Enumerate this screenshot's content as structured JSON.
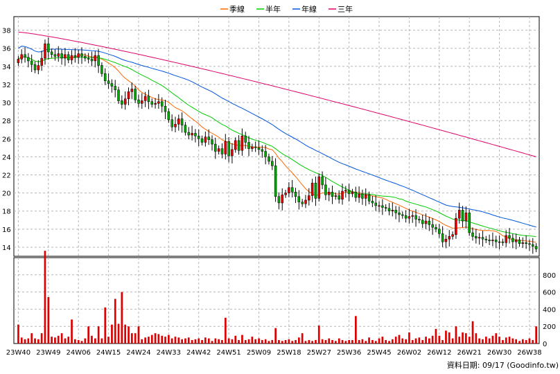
{
  "chart_data": {
    "type": "candlestick",
    "legend": [
      {
        "name": "季線",
        "color": "#ff6600"
      },
      {
        "name": "半年",
        "color": "#00cc00"
      },
      {
        "name": "年線",
        "color": "#0055dd"
      },
      {
        "name": "三年",
        "color": "#dd0066"
      }
    ],
    "legend_position": "top-center",
    "grid": true,
    "colors": {
      "up": "#ee0000",
      "down": "#00aa00",
      "volume": "#dd0000"
    },
    "price_axis": {
      "ylim": [
        13,
        39.5
      ],
      "ticks": [
        14,
        16,
        18,
        20,
        22,
        24,
        26,
        28,
        30,
        32,
        34,
        36,
        38
      ]
    },
    "volume_axis": {
      "ylim": [
        0,
        1000
      ],
      "ticks": [
        0,
        200,
        400,
        600,
        800
      ]
    },
    "x_tick_labels": [
      "23W40",
      "23W49",
      "24W06",
      "24W15",
      "24W24",
      "24W33",
      "24W42",
      "24W51",
      "25W09",
      "25W18",
      "25W27",
      "25W36",
      "25W45",
      "26W02",
      "26W12",
      "26W21",
      "26W30",
      "26W38"
    ],
    "x_tick_indices": [
      0,
      9,
      18,
      27,
      36,
      45,
      54,
      63,
      72,
      81,
      90,
      99,
      108,
      117,
      126,
      135,
      144,
      153
    ],
    "close": [
      34.8,
      35.3,
      35.0,
      34.6,
      34.2,
      33.6,
      34.1,
      34.9,
      36.5,
      35.6,
      35.3,
      35.1,
      35.4,
      34.9,
      35.3,
      34.7,
      35.2,
      35.0,
      35.4,
      35.1,
      34.9,
      34.8,
      34.6,
      35.2,
      34.1,
      33.2,
      32.4,
      32.1,
      31.8,
      31.4,
      30.2,
      29.8,
      30.4,
      31.2,
      31.5,
      30.3,
      29.9,
      30.2,
      30.7,
      30.1,
      29.8,
      29.9,
      30.1,
      29.6,
      29.0,
      28.1,
      27.3,
      27.6,
      28.2,
      27.5,
      26.7,
      26.4,
      26.6,
      26.3,
      26.0,
      25.6,
      26.2,
      25.9,
      25.4,
      24.6,
      24.9,
      24.3,
      25.7,
      24.1,
      24.8,
      25.8,
      24.7,
      26.3,
      25.6,
      24.9,
      25.1,
      25.0,
      24.8,
      24.6,
      24.0,
      23.5,
      23.0,
      19.6,
      18.9,
      19.8,
      20.0,
      20.6,
      20.1,
      19.6,
      19.0,
      18.8,
      19.2,
      19.7,
      21.1,
      19.4,
      21.8,
      20.9,
      19.8,
      20.1,
      19.6,
      19.7,
      19.3,
      20.2,
      20.3,
      19.9,
      20.1,
      19.5,
      19.9,
      19.4,
      19.8,
      19.1,
      18.9,
      18.6,
      18.6,
      18.4,
      18.3,
      18.0,
      18.1,
      17.8,
      17.6,
      17.5,
      17.2,
      17.4,
      17.5,
      17.1,
      17.0,
      16.6,
      16.9,
      16.5,
      16.2,
      16.0,
      15.5,
      14.6,
      14.9,
      15.2,
      15.4,
      17.2,
      18.1,
      16.9,
      17.8,
      15.6,
      15.2,
      15.0,
      15.1,
      14.9,
      14.8,
      14.7,
      14.8,
      14.6,
      14.6,
      14.5,
      15.3,
      15.0,
      14.6,
      14.8,
      14.4,
      14.5,
      14.4,
      14.3,
      14.1,
      13.8
    ],
    "volume": [
      220,
      70,
      50,
      60,
      120,
      60,
      50,
      120,
      1080,
      540,
      80,
      70,
      90,
      120,
      60,
      80,
      280,
      50,
      40,
      30,
      60,
      200,
      90,
      60,
      200,
      60,
      420,
      80,
      220,
      520,
      230,
      600,
      220,
      200,
      120,
      120,
      200,
      50,
      70,
      80,
      100,
      120,
      110,
      90,
      80,
      100,
      60,
      80,
      70,
      50,
      60,
      70,
      40,
      50,
      60,
      40,
      70,
      60,
      30,
      60,
      50,
      40,
      300,
      60,
      50,
      90,
      40,
      100,
      40,
      50,
      80,
      50,
      60,
      40,
      50,
      30,
      40,
      180,
      40,
      30,
      40,
      50,
      30,
      40,
      70,
      120,
      30,
      40,
      30,
      40,
      210,
      50,
      40,
      60,
      40,
      30,
      60,
      40,
      30,
      40,
      40,
      320,
      40,
      50,
      30,
      70,
      40,
      30,
      60,
      80,
      40,
      30,
      50,
      80,
      100,
      60,
      50,
      130,
      40,
      60,
      70,
      40,
      80,
      60,
      90,
      170,
      90,
      40,
      150,
      130,
      60,
      200,
      80,
      130,
      120,
      80,
      260,
      120,
      60,
      50,
      80,
      60,
      90,
      120,
      80,
      40,
      70,
      80,
      60,
      50,
      30,
      50,
      40,
      60,
      40,
      200
    ]
  }
}
